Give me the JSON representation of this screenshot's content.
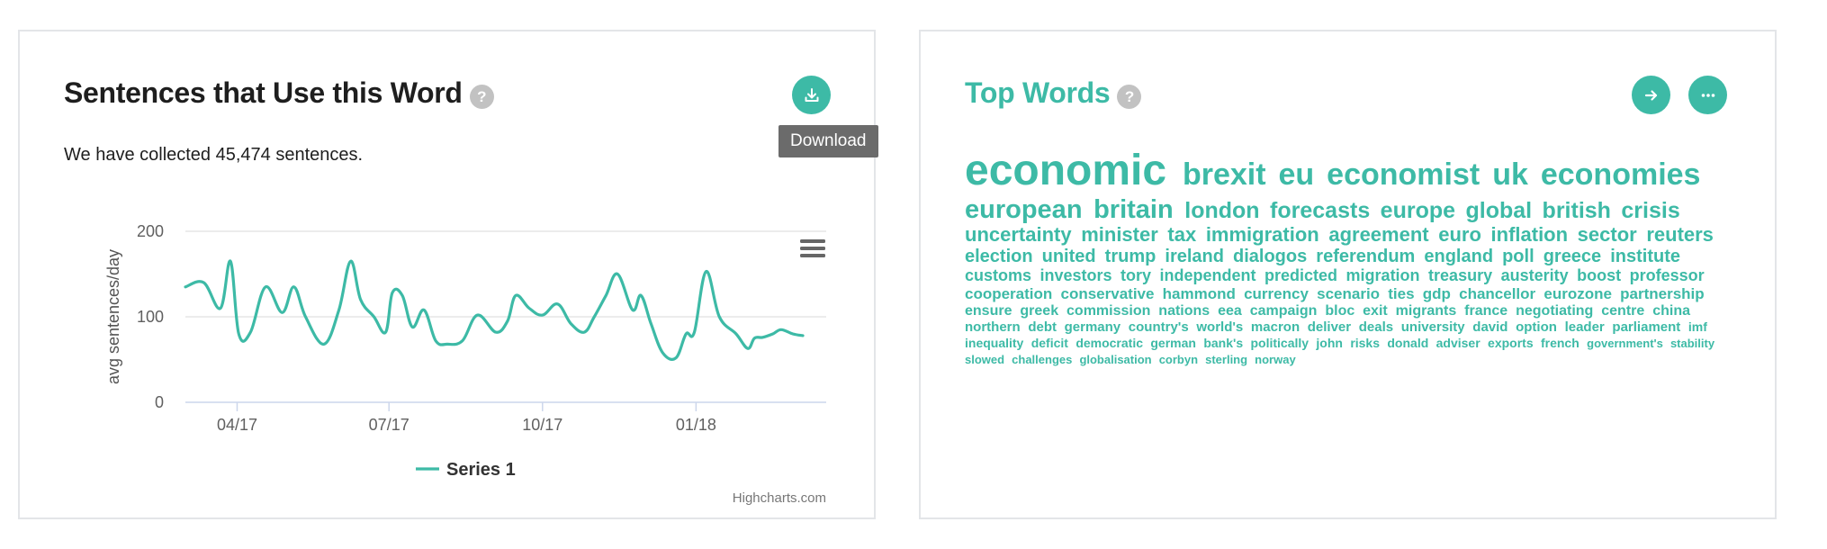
{
  "sentences_card": {
    "title": "Sentences that Use this Word",
    "help_icon": "?",
    "download_tooltip": "Download",
    "collected_text": "We have collected 45,474 sentences."
  },
  "chart_data": {
    "type": "line",
    "title": "",
    "xlabel": "",
    "ylabel": "avg sentences/day",
    "ylim": [
      0,
      200
    ],
    "yticks": [
      0,
      100,
      200
    ],
    "x_range": [
      "2017-03-01",
      "2018-03-20"
    ],
    "xticks": [
      {
        "label": "04/17",
        "date": "2017-04-01"
      },
      {
        "label": "07/17",
        "date": "2017-07-01"
      },
      {
        "label": "10/17",
        "date": "2017-10-01"
      },
      {
        "label": "01/18",
        "date": "2018-01-01"
      }
    ],
    "series": [
      {
        "name": "Series 1",
        "color": "#3dbaa6",
        "x": [
          "2017-03-01",
          "2017-03-12",
          "2017-03-22",
          "2017-03-28",
          "2017-04-02",
          "2017-04-09",
          "2017-04-18",
          "2017-04-28",
          "2017-05-05",
          "2017-05-12",
          "2017-05-23",
          "2017-06-01",
          "2017-06-08",
          "2017-06-14",
          "2017-06-22",
          "2017-06-29",
          "2017-07-03",
          "2017-07-09",
          "2017-07-15",
          "2017-07-22",
          "2017-07-29",
          "2017-08-05",
          "2017-08-14",
          "2017-08-23",
          "2017-09-03",
          "2017-09-10",
          "2017-09-15",
          "2017-09-23",
          "2017-10-01",
          "2017-10-10",
          "2017-10-18",
          "2017-10-26",
          "2017-11-01",
          "2017-11-08",
          "2017-11-15",
          "2017-11-24",
          "2017-11-29",
          "2017-12-05",
          "2017-12-12",
          "2017-12-20",
          "2017-12-26",
          "2017-12-31",
          "2018-01-07",
          "2018-01-15",
          "2018-01-25",
          "2018-02-01",
          "2018-02-05",
          "2018-02-10",
          "2018-02-16",
          "2018-02-21",
          "2018-02-28",
          "2018-03-06"
        ],
        "y": [
          135,
          140,
          110,
          165,
          80,
          82,
          135,
          105,
          135,
          100,
          68,
          108,
          165,
          120,
          100,
          82,
          128,
          125,
          88,
          108,
          72,
          68,
          72,
          102,
          82,
          95,
          125,
          110,
          102,
          115,
          92,
          82,
          100,
          125,
          150,
          108,
          125,
          92,
          58,
          52,
          80,
          82,
          153,
          100,
          80,
          63,
          75,
          76,
          80,
          85,
          80,
          78
        ]
      }
    ],
    "legend": {
      "position": "bottom-center",
      "entries": [
        "Series 1"
      ]
    },
    "grid": true,
    "menu_icon": "hamburger-icon",
    "credit": "Highcharts.com"
  },
  "topwords_card": {
    "title": "Top Words",
    "help_icon": "?",
    "arrow_icon": "arrow-right-icon",
    "more_icon": "more-horizontal-icon",
    "word_color": "#3dbaa6",
    "words": [
      {
        "text": "economic",
        "size": 48
      },
      {
        "text": "brexit",
        "size": 34
      },
      {
        "text": "eu",
        "size": 34
      },
      {
        "text": "economist",
        "size": 34
      },
      {
        "text": "uk",
        "size": 34
      },
      {
        "text": "economies",
        "size": 34
      },
      {
        "text": "european",
        "size": 29
      },
      {
        "text": "britain",
        "size": 29
      },
      {
        "text": "london",
        "size": 25
      },
      {
        "text": "forecasts",
        "size": 25
      },
      {
        "text": "europe",
        "size": 25
      },
      {
        "text": "global",
        "size": 25
      },
      {
        "text": "british",
        "size": 25
      },
      {
        "text": "crisis",
        "size": 25
      },
      {
        "text": "uncertainty",
        "size": 22
      },
      {
        "text": "minister",
        "size": 22
      },
      {
        "text": "tax",
        "size": 22
      },
      {
        "text": "immigration",
        "size": 22
      },
      {
        "text": "agreement",
        "size": 22
      },
      {
        "text": "euro",
        "size": 22
      },
      {
        "text": "inflation",
        "size": 22
      },
      {
        "text": "sector",
        "size": 22
      },
      {
        "text": "reuters",
        "size": 22
      },
      {
        "text": "election",
        "size": 20
      },
      {
        "text": "united",
        "size": 20
      },
      {
        "text": "trump",
        "size": 20
      },
      {
        "text": "ireland",
        "size": 20
      },
      {
        "text": "dialogos",
        "size": 20
      },
      {
        "text": "referendum",
        "size": 20
      },
      {
        "text": "england",
        "size": 20
      },
      {
        "text": "poll",
        "size": 20
      },
      {
        "text": "greece",
        "size": 20
      },
      {
        "text": "institute",
        "size": 20
      },
      {
        "text": "customs",
        "size": 18
      },
      {
        "text": "investors",
        "size": 18
      },
      {
        "text": "tory",
        "size": 18
      },
      {
        "text": "independent",
        "size": 18
      },
      {
        "text": "predicted",
        "size": 18
      },
      {
        "text": "migration",
        "size": 18
      },
      {
        "text": "treasury",
        "size": 18
      },
      {
        "text": "austerity",
        "size": 18
      },
      {
        "text": "boost",
        "size": 18
      },
      {
        "text": "professor",
        "size": 18
      },
      {
        "text": "cooperation",
        "size": 17
      },
      {
        "text": "conservative",
        "size": 17
      },
      {
        "text": "hammond",
        "size": 17
      },
      {
        "text": "currency",
        "size": 17
      },
      {
        "text": "scenario",
        "size": 17
      },
      {
        "text": "ties",
        "size": 17
      },
      {
        "text": "gdp",
        "size": 17
      },
      {
        "text": "chancellor",
        "size": 17
      },
      {
        "text": "eurozone",
        "size": 17
      },
      {
        "text": "partnership",
        "size": 17
      },
      {
        "text": "ensure",
        "size": 16
      },
      {
        "text": "greek",
        "size": 16
      },
      {
        "text": "commission",
        "size": 16
      },
      {
        "text": "nations",
        "size": 16
      },
      {
        "text": "eea",
        "size": 16
      },
      {
        "text": "campaign",
        "size": 16
      },
      {
        "text": "bloc",
        "size": 16
      },
      {
        "text": "exit",
        "size": 16
      },
      {
        "text": "migrants",
        "size": 16
      },
      {
        "text": "france",
        "size": 16
      },
      {
        "text": "negotiating",
        "size": 16
      },
      {
        "text": "centre",
        "size": 16
      },
      {
        "text": "china",
        "size": 16
      },
      {
        "text": "northern",
        "size": 15
      },
      {
        "text": "debt",
        "size": 15
      },
      {
        "text": "germany",
        "size": 15
      },
      {
        "text": "country's",
        "size": 15
      },
      {
        "text": "world's",
        "size": 15
      },
      {
        "text": "macron",
        "size": 15
      },
      {
        "text": "deliver",
        "size": 15
      },
      {
        "text": "deals",
        "size": 15
      },
      {
        "text": "university",
        "size": 15
      },
      {
        "text": "david",
        "size": 15
      },
      {
        "text": "option",
        "size": 15
      },
      {
        "text": "leader",
        "size": 15
      },
      {
        "text": "parliament",
        "size": 15
      },
      {
        "text": "imf",
        "size": 14
      },
      {
        "text": "inequality",
        "size": 14
      },
      {
        "text": "deficit",
        "size": 14
      },
      {
        "text": "democratic",
        "size": 14
      },
      {
        "text": "german",
        "size": 14
      },
      {
        "text": "bank's",
        "size": 14
      },
      {
        "text": "politically",
        "size": 14
      },
      {
        "text": "john",
        "size": 14
      },
      {
        "text": "risks",
        "size": 14
      },
      {
        "text": "donald",
        "size": 14
      },
      {
        "text": "adviser",
        "size": 14
      },
      {
        "text": "exports",
        "size": 14
      },
      {
        "text": "french",
        "size": 14
      },
      {
        "text": "government's",
        "size": 13
      },
      {
        "text": "stability",
        "size": 13
      },
      {
        "text": "slowed",
        "size": 13
      },
      {
        "text": "challenges",
        "size": 13
      },
      {
        "text": "globalisation",
        "size": 13
      },
      {
        "text": "corbyn",
        "size": 13
      },
      {
        "text": "sterling",
        "size": 13
      },
      {
        "text": "norway",
        "size": 13
      }
    ]
  }
}
